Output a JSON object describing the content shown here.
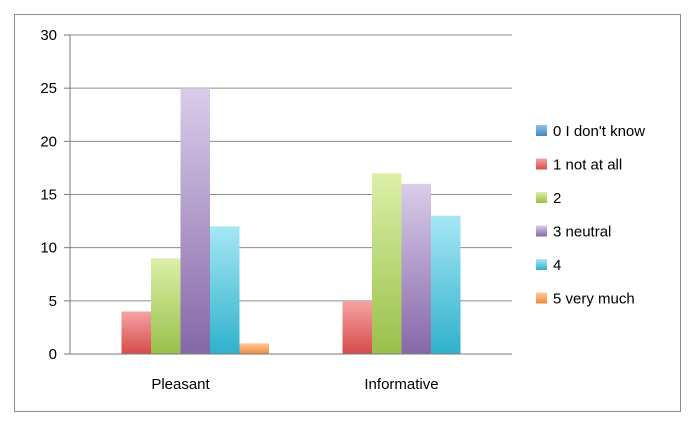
{
  "chart_data": {
    "type": "bar",
    "categories": [
      "Pleasant",
      "Informative"
    ],
    "series": [
      {
        "name": "0 I don't know",
        "values": [
          0,
          0
        ],
        "color_top": "#8fc1ea",
        "color_bottom": "#3f86c6"
      },
      {
        "name": "1 not at all",
        "values": [
          4,
          5
        ],
        "color_top": "#f5a3a3",
        "color_bottom": "#d64b4b"
      },
      {
        "name": "2",
        "values": [
          9,
          17
        ],
        "color_top": "#dcefa8",
        "color_bottom": "#98c04a"
      },
      {
        "name": "3 neutral",
        "values": [
          25,
          16
        ],
        "color_top": "#d9cdea",
        "color_bottom": "#8667a8"
      },
      {
        "name": "4",
        "values": [
          12,
          13
        ],
        "color_top": "#a6e7f5",
        "color_bottom": "#2fb1cc"
      },
      {
        "name": "5 very much",
        "values": [
          1,
          0
        ],
        "color_top": "#fbc99a",
        "color_bottom": "#f08a3c"
      }
    ],
    "yticks": [
      "0",
      "5",
      "10",
      "15",
      "20",
      "25",
      "30"
    ],
    "ylim": [
      0,
      30
    ],
    "grid": true,
    "legend": "right"
  }
}
